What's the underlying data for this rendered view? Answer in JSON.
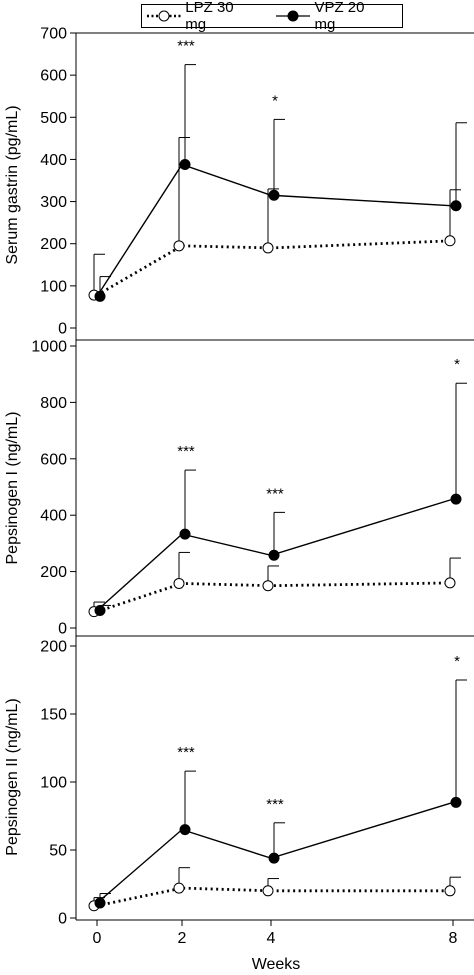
{
  "legend": {
    "lpz_label": "LPZ 30 mg",
    "vpz_label": "VPZ 20 mg"
  },
  "colors": {
    "line": "#000000",
    "lpz_marker_fill": "#ffffff",
    "vpz_marker_fill": "#000000"
  },
  "chart_data": [
    {
      "type": "line",
      "ylabel": "Serum gastrin (pg/mL)",
      "ylim": [
        0,
        700
      ],
      "yticks": [
        0,
        100,
        200,
        300,
        400,
        500,
        600,
        700
      ],
      "x": [
        0,
        2,
        4,
        8
      ],
      "series": [
        {
          "name": "LPZ 30 mg",
          "style": "dotted-open-circle",
          "values": [
            78,
            195,
            190,
            207
          ],
          "error_upper": [
            175,
            452,
            330,
            328
          ]
        },
        {
          "name": "VPZ 20 mg",
          "style": "solid-filled-circle",
          "values": [
            75,
            388,
            315,
            290
          ],
          "error_upper": [
            122,
            625,
            495,
            487
          ]
        }
      ],
      "annotations": [
        {
          "x": 2,
          "text": "***"
        },
        {
          "x": 4,
          "text": "*"
        }
      ]
    },
    {
      "type": "line",
      "ylabel": "Pepsinogen I (ng/mL)",
      "ylim": [
        0,
        1000
      ],
      "yticks": [
        0,
        200,
        400,
        600,
        800,
        1000
      ],
      "x": [
        0,
        2,
        4,
        8
      ],
      "series": [
        {
          "name": "LPZ 30 mg",
          "style": "dotted-open-circle",
          "values": [
            58,
            158,
            150,
            160
          ],
          "error_upper": [
            92,
            268,
            220,
            248
          ]
        },
        {
          "name": "VPZ 20 mg",
          "style": "solid-filled-circle",
          "values": [
            62,
            333,
            258,
            457
          ],
          "error_upper": [
            80,
            560,
            410,
            868
          ]
        }
      ],
      "annotations": [
        {
          "x": 2,
          "text": "***"
        },
        {
          "x": 4,
          "text": "***"
        },
        {
          "x": 8,
          "text": "*"
        }
      ]
    },
    {
      "type": "line",
      "ylabel": "Pepsinogen II (ng/mL)",
      "xlabel": "Weeks",
      "ylim": [
        0,
        200
      ],
      "yticks": [
        0,
        50,
        100,
        150,
        200
      ],
      "x": [
        0,
        2,
        4,
        8
      ],
      "xticks": [
        "0",
        "2",
        "4",
        "8"
      ],
      "series": [
        {
          "name": "LPZ 30 mg",
          "style": "dotted-open-circle",
          "values": [
            9,
            22,
            20,
            20
          ],
          "error_upper": [
            15,
            37,
            29,
            30
          ]
        },
        {
          "name": "VPZ 20 mg",
          "style": "solid-filled-circle",
          "values": [
            11,
            65,
            44,
            85
          ],
          "error_upper": [
            18,
            108,
            70,
            175
          ]
        }
      ],
      "annotations": [
        {
          "x": 2,
          "text": "***"
        },
        {
          "x": 4,
          "text": "***"
        },
        {
          "x": 8,
          "text": "*"
        }
      ]
    }
  ]
}
